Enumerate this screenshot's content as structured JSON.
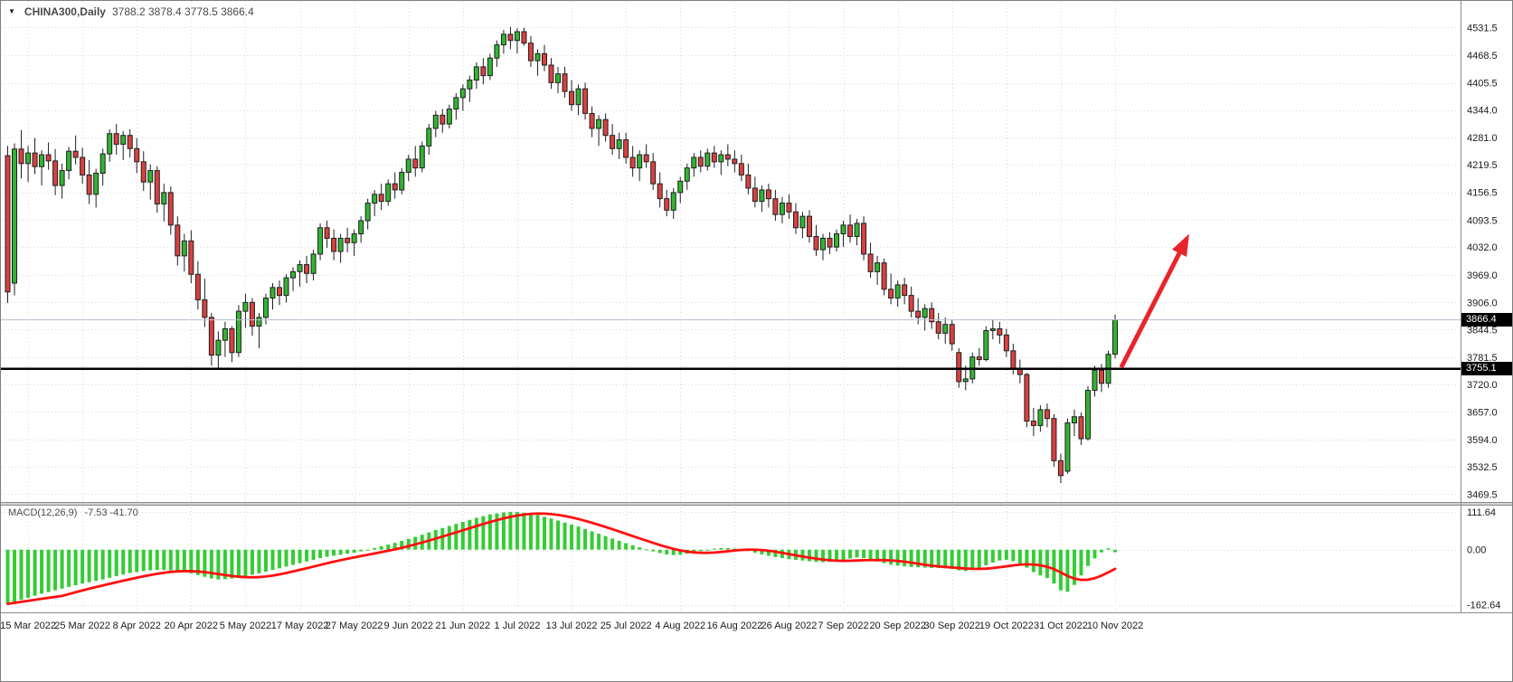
{
  "window": {
    "title_symbol": "CHINA300,Daily",
    "title_ohlc": "3788.2 3878.4 3778.5 3866.4"
  },
  "badges": {
    "current_price": "3866.4",
    "level_price": "3755.1"
  },
  "colors": {
    "bull": "#32b432",
    "bear": "#d94040",
    "candle_outline": "#1f1f1f",
    "wick": "#1f1f1f",
    "grid": "#d9d9d9",
    "macd_hist": "#35cc35",
    "macd_signal": "#ff0f0f",
    "current_price_line": "#b8bece",
    "level_line": "#000000",
    "badge_bg": "#000000",
    "badge_text": "#ffffff"
  },
  "chart_data": {
    "type": "candlestick",
    "symbol": "CHINA300",
    "timeframe": "Daily",
    "last_bar": {
      "open": 3788.2,
      "high": 3878.4,
      "low": 3778.5,
      "close": 3866.4
    },
    "price_axis": {
      "ylim": [
        3452,
        4592
      ],
      "ticks": [
        4531.5,
        4468.5,
        4405.5,
        4344.0,
        4281.0,
        4219.5,
        4156.5,
        4093.5,
        4032.0,
        3969.0,
        3906.0,
        3844.5,
        3781.5,
        3720.0,
        3657.0,
        3594.0,
        3532.5,
        3469.5
      ],
      "current_price": 3866.4,
      "level_line": 3755.1
    },
    "time_axis": {
      "ticks": [
        {
          "index": 3,
          "label": "15 Mar 2022"
        },
        {
          "index": 11,
          "label": "25 Mar 2022"
        },
        {
          "index": 19,
          "label": "8 Apr 2022"
        },
        {
          "index": 27,
          "label": "20 Apr 2022"
        },
        {
          "index": 35,
          "label": "5 May 2022"
        },
        {
          "index": 43,
          "label": "17 May 2022"
        },
        {
          "index": 51,
          "label": "27 May 2022"
        },
        {
          "index": 59,
          "label": "9 Jun 2022"
        },
        {
          "index": 67,
          "label": "21 Jun 2022"
        },
        {
          "index": 75,
          "label": "1 Jul 2022"
        },
        {
          "index": 83,
          "label": "13 Jul 2022"
        },
        {
          "index": 91,
          "label": "25 Jul 2022"
        },
        {
          "index": 99,
          "label": "4 Aug 2022"
        },
        {
          "index": 107,
          "label": "16 Aug 2022"
        },
        {
          "index": 115,
          "label": "26 Aug 2022"
        },
        {
          "index": 123,
          "label": "7 Sep 2022"
        },
        {
          "index": 131,
          "label": "20 Sep 2022"
        },
        {
          "index": 139,
          "label": "30 Sep 2022"
        },
        {
          "index": 147,
          "label": "19 Oct 2022"
        },
        {
          "index": 155,
          "label": "31 Oct 2022"
        },
        {
          "index": 163,
          "label": "10 Nov 2022"
        }
      ]
    },
    "ohlc": [
      [
        4240,
        4262,
        3905,
        3930
      ],
      [
        3950,
        4268,
        3922,
        4255
      ],
      [
        4255,
        4298,
        4188,
        4222
      ],
      [
        4222,
        4262,
        4180,
        4246
      ],
      [
        4246,
        4280,
        4198,
        4215
      ],
      [
        4215,
        4252,
        4172,
        4242
      ],
      [
        4242,
        4270,
        4208,
        4228
      ],
      [
        4228,
        4255,
        4150,
        4172
      ],
      [
        4172,
        4222,
        4142,
        4206
      ],
      [
        4206,
        4260,
        4186,
        4250
      ],
      [
        4250,
        4286,
        4220,
        4236
      ],
      [
        4236,
        4258,
        4176,
        4196
      ],
      [
        4196,
        4230,
        4130,
        4152
      ],
      [
        4152,
        4210,
        4122,
        4200
      ],
      [
        4200,
        4256,
        4172,
        4244
      ],
      [
        4244,
        4300,
        4226,
        4290
      ],
      [
        4290,
        4312,
        4242,
        4266
      ],
      [
        4266,
        4296,
        4230,
        4286
      ],
      [
        4286,
        4300,
        4236,
        4256
      ],
      [
        4256,
        4280,
        4200,
        4226
      ],
      [
        4226,
        4250,
        4160,
        4180
      ],
      [
        4180,
        4220,
        4140,
        4206
      ],
      [
        4206,
        4216,
        4110,
        4130
      ],
      [
        4130,
        4176,
        4090,
        4156
      ],
      [
        4156,
        4170,
        4060,
        4082
      ],
      [
        4082,
        4102,
        3990,
        4012
      ],
      [
        4012,
        4062,
        3976,
        4046
      ],
      [
        4046,
        4070,
        3950,
        3970
      ],
      [
        3970,
        4000,
        3890,
        3912
      ],
      [
        3912,
        3960,
        3850,
        3872
      ],
      [
        3872,
        3882,
        3762,
        3786
      ],
      [
        3786,
        3840,
        3756,
        3820
      ],
      [
        3820,
        3862,
        3782,
        3846
      ],
      [
        3846,
        3852,
        3770,
        3792
      ],
      [
        3792,
        3900,
        3782,
        3886
      ],
      [
        3886,
        3926,
        3848,
        3906
      ],
      [
        3906,
        3916,
        3830,
        3852
      ],
      [
        3852,
        3882,
        3802,
        3872
      ],
      [
        3872,
        3926,
        3856,
        3916
      ],
      [
        3916,
        3950,
        3890,
        3940
      ],
      [
        3940,
        3956,
        3900,
        3922
      ],
      [
        3922,
        3970,
        3906,
        3962
      ],
      [
        3962,
        3986,
        3932,
        3976
      ],
      [
        3976,
        4002,
        3942,
        3992
      ],
      [
        3992,
        4012,
        3950,
        3972
      ],
      [
        3972,
        4026,
        3956,
        4016
      ],
      [
        4016,
        4086,
        4002,
        4076
      ],
      [
        4076,
        4092,
        4030,
        4052
      ],
      [
        4052,
        4072,
        4002,
        4022
      ],
      [
        4022,
        4062,
        3996,
        4052
      ],
      [
        4052,
        4076,
        4020,
        4042
      ],
      [
        4042,
        4072,
        4012,
        4062
      ],
      [
        4062,
        4102,
        4042,
        4092
      ],
      [
        4092,
        4142,
        4072,
        4132
      ],
      [
        4132,
        4162,
        4102,
        4152
      ],
      [
        4152,
        4176,
        4116,
        4136
      ],
      [
        4136,
        4186,
        4126,
        4176
      ],
      [
        4176,
        4202,
        4142,
        4162
      ],
      [
        4162,
        4212,
        4152,
        4202
      ],
      [
        4202,
        4242,
        4182,
        4232
      ],
      [
        4232,
        4262,
        4192,
        4212
      ],
      [
        4212,
        4272,
        4202,
        4262
      ],
      [
        4262,
        4312,
        4242,
        4302
      ],
      [
        4302,
        4342,
        4282,
        4332
      ],
      [
        4332,
        4346,
        4292,
        4312
      ],
      [
        4312,
        4356,
        4302,
        4346
      ],
      [
        4346,
        4382,
        4322,
        4372
      ],
      [
        4372,
        4402,
        4342,
        4392
      ],
      [
        4392,
        4422,
        4362,
        4412
      ],
      [
        4412,
        4452,
        4392,
        4442
      ],
      [
        4442,
        4462,
        4402,
        4422
      ],
      [
        4422,
        4472,
        4412,
        4462
      ],
      [
        4462,
        4502,
        4442,
        4492
      ],
      [
        4492,
        4526,
        4472,
        4516
      ],
      [
        4516,
        4533,
        4482,
        4502
      ],
      [
        4502,
        4530,
        4472,
        4522
      ],
      [
        4522,
        4531,
        4490,
        4496
      ],
      [
        4496,
        4512,
        4442,
        4456
      ],
      [
        4456,
        4482,
        4422,
        4472
      ],
      [
        4472,
        4492,
        4432,
        4446
      ],
      [
        4446,
        4462,
        4392,
        4406
      ],
      [
        4406,
        4442,
        4382,
        4426
      ],
      [
        4426,
        4442,
        4372,
        4386
      ],
      [
        4386,
        4412,
        4342,
        4356
      ],
      [
        4356,
        4402,
        4332,
        4392
      ],
      [
        4392,
        4406,
        4322,
        4336
      ],
      [
        4336,
        4352,
        4282,
        4302
      ],
      [
        4302,
        4332,
        4262,
        4322
      ],
      [
        4322,
        4336,
        4272,
        4286
      ],
      [
        4286,
        4312,
        4242,
        4256
      ],
      [
        4256,
        4292,
        4232,
        4276
      ],
      [
        4276,
        4292,
        4222,
        4236
      ],
      [
        4236,
        4262,
        4192,
        4212
      ],
      [
        4212,
        4252,
        4182,
        4242
      ],
      [
        4242,
        4266,
        4212,
        4226
      ],
      [
        4226,
        4246,
        4162,
        4176
      ],
      [
        4176,
        4202,
        4122,
        4142
      ],
      [
        4142,
        4162,
        4102,
        4116
      ],
      [
        4116,
        4166,
        4096,
        4156
      ],
      [
        4156,
        4192,
        4132,
        4182
      ],
      [
        4182,
        4222,
        4162,
        4212
      ],
      [
        4212,
        4246,
        4192,
        4236
      ],
      [
        4236,
        4252,
        4202,
        4216
      ],
      [
        4216,
        4256,
        4206,
        4246
      ],
      [
        4246,
        4262,
        4212,
        4226
      ],
      [
        4226,
        4252,
        4196,
        4242
      ],
      [
        4242,
        4266,
        4216,
        4232
      ],
      [
        4232,
        4252,
        4202,
        4222
      ],
      [
        4222,
        4242,
        4182,
        4196
      ],
      [
        4196,
        4222,
        4152,
        4166
      ],
      [
        4166,
        4192,
        4122,
        4136
      ],
      [
        4136,
        4172,
        4112,
        4162
      ],
      [
        4162,
        4176,
        4122,
        4142
      ],
      [
        4142,
        4162,
        4092,
        4106
      ],
      [
        4106,
        4146,
        4086,
        4132
      ],
      [
        4132,
        4152,
        4096,
        4112
      ],
      [
        4112,
        4132,
        4062,
        4076
      ],
      [
        4076,
        4112,
        4052,
        4102
      ],
      [
        4102,
        4116,
        4042,
        4056
      ],
      [
        4056,
        4082,
        4012,
        4026
      ],
      [
        4026,
        4062,
        4002,
        4052
      ],
      [
        4052,
        4066,
        4016,
        4032
      ],
      [
        4032,
        4072,
        4022,
        4062
      ],
      [
        4062,
        4092,
        4032,
        4082
      ],
      [
        4082,
        4106,
        4042,
        4056
      ],
      [
        4056,
        4096,
        4036,
        4086
      ],
      [
        4086,
        4102,
        4002,
        4016
      ],
      [
        4016,
        4042,
        3962,
        3976
      ],
      [
        3976,
        4012,
        3946,
        3996
      ],
      [
        3996,
        4006,
        3922,
        3936
      ],
      [
        3936,
        3972,
        3902,
        3916
      ],
      [
        3916,
        3956,
        3896,
        3946
      ],
      [
        3946,
        3962,
        3902,
        3922
      ],
      [
        3922,
        3942,
        3872,
        3886
      ],
      [
        3886,
        3916,
        3856,
        3872
      ],
      [
        3872,
        3902,
        3842,
        3892
      ],
      [
        3892,
        3906,
        3846,
        3862
      ],
      [
        3862,
        3882,
        3822,
        3836
      ],
      [
        3836,
        3872,
        3812,
        3856
      ],
      [
        3856,
        3866,
        3796,
        3812
      ],
      [
        3792,
        3802,
        3712,
        3726
      ],
      [
        3726,
        3762,
        3706,
        3732
      ],
      [
        3732,
        3792,
        3722,
        3782
      ],
      [
        3782,
        3802,
        3762,
        3776
      ],
      [
        3776,
        3852,
        3772,
        3842
      ],
      [
        3842,
        3866,
        3822,
        3846
      ],
      [
        3846,
        3862,
        3812,
        3832
      ],
      [
        3832,
        3846,
        3782,
        3796
      ],
      [
        3796,
        3812,
        3742,
        3756
      ],
      [
        3756,
        3776,
        3722,
        3742
      ],
      [
        3742,
        3746,
        3622,
        3636
      ],
      [
        3636,
        3666,
        3602,
        3626
      ],
      [
        3626,
        3672,
        3612,
        3662
      ],
      [
        3662,
        3676,
        3622,
        3642
      ],
      [
        3642,
        3652,
        3532,
        3546
      ],
      [
        3546,
        3562,
        3495,
        3512
      ],
      [
        3522,
        3642,
        3516,
        3632
      ],
      [
        3632,
        3662,
        3602,
        3646
      ],
      [
        3646,
        3656,
        3582,
        3596
      ],
      [
        3596,
        3716,
        3592,
        3706
      ],
      [
        3706,
        3762,
        3692,
        3752
      ],
      [
        3752,
        3766,
        3702,
        3722
      ],
      [
        3722,
        3796,
        3712,
        3788
      ],
      [
        3788.2,
        3878.4,
        3778.5,
        3866.4
      ]
    ],
    "macd": {
      "label": "MACD(12,26,9)",
      "values_text": "-7.53 -41.70",
      "periods": [
        12,
        26,
        9
      ],
      "ticks": [
        111.64,
        0,
        -162.64
      ],
      "ylim": [
        -185,
        130
      ],
      "main": [
        -160,
        -154,
        -148,
        -142,
        -136,
        -130,
        -125,
        -120,
        -115,
        -110,
        -105,
        -100,
        -96,
        -92,
        -88,
        -83,
        -78,
        -73,
        -69,
        -66,
        -63,
        -61,
        -60,
        -60,
        -61,
        -63,
        -66,
        -70,
        -75,
        -80,
        -85,
        -88,
        -87,
        -85,
        -82,
        -78,
        -74,
        -70,
        -65,
        -60,
        -55,
        -50,
        -45,
        -40,
        -35,
        -30,
        -25,
        -21,
        -18,
        -15,
        -12,
        -9,
        -5,
        0,
        5,
        10,
        15,
        20,
        26,
        32,
        38,
        44,
        51,
        58,
        64,
        70,
        76,
        82,
        88,
        94,
        99,
        104,
        107,
        110,
        111.6,
        111,
        109,
        106,
        102,
        97,
        92,
        86,
        80,
        74,
        68,
        61,
        54,
        47,
        40,
        33,
        26,
        19,
        13,
        7,
        1,
        -5,
        -10,
        -14,
        -16,
        -15,
        -12,
        -8,
        -4,
        0,
        3,
        5,
        5,
        3,
        0,
        -4,
        -9,
        -14,
        -18,
        -22,
        -25,
        -28,
        -30,
        -32,
        -34,
        -36,
        -37,
        -36,
        -34,
        -30,
        -26,
        -23,
        -25,
        -30,
        -35,
        -40,
        -44,
        -47,
        -49,
        -51,
        -52,
        -53,
        -54,
        -54,
        -55,
        -57,
        -61,
        -63,
        -60,
        -54,
        -46,
        -38,
        -32,
        -30,
        -34,
        -41,
        -53,
        -66,
        -76,
        -84,
        -100,
        -120,
        -124,
        -104,
        -76,
        -48,
        -26,
        -8,
        4,
        -7.53
      ]
    },
    "annotations": {
      "arrow": {
        "from_index": 163.9,
        "from_price": 3758,
        "to_index": 173.9,
        "to_price": 4062,
        "color": "#e8242c",
        "width": 5
      }
    }
  }
}
